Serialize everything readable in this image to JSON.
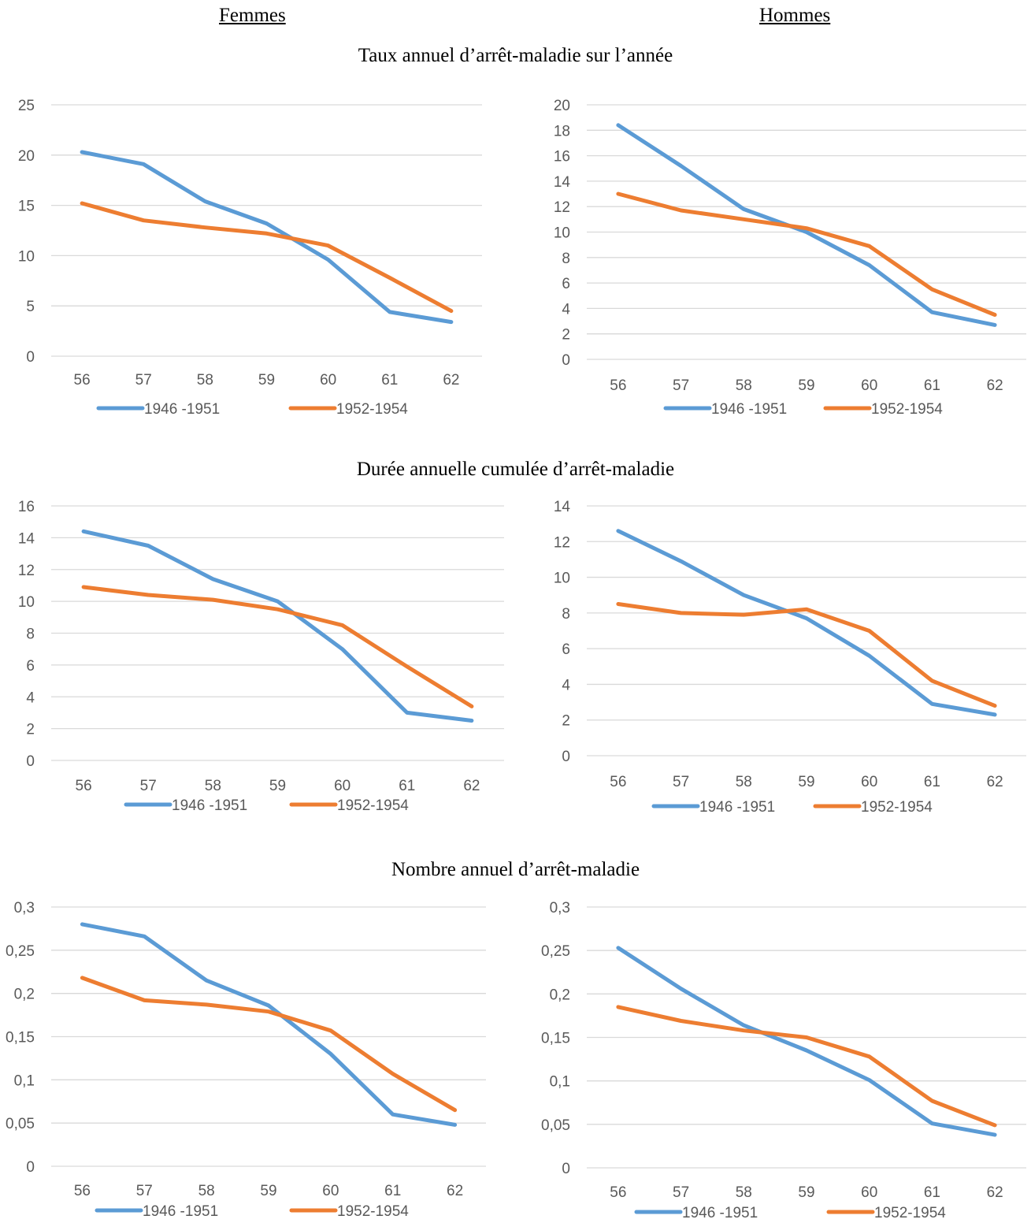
{
  "headers": {
    "left": "Femmes",
    "right": "Hommes"
  },
  "row_titles": [
    "Taux annuel d’arrêt-maladie sur l’année",
    "Durée annuelle cumulée d’arrêt-maladie",
    "Nombre annuel d’arrêt-maladie"
  ],
  "colors": {
    "series1": "#5B9BD5",
    "series2": "#ED7D31",
    "grid": "#D9D9D9",
    "text": "#595959"
  },
  "chart_data": [
    {
      "type": "line",
      "panel": "Femmes",
      "section": "Taux annuel d’arrêt-maladie sur l’année",
      "categories": [
        "56",
        "57",
        "58",
        "59",
        "60",
        "61",
        "62"
      ],
      "ylim": [
        0,
        25
      ],
      "yticks": [
        "0",
        "5",
        "10",
        "15",
        "20",
        "25"
      ],
      "ytick_values": [
        0,
        5,
        10,
        15,
        20,
        25
      ],
      "grid": true,
      "legend": "bottom",
      "series": [
        {
          "name": "1946 -1951",
          "values": [
            20.3,
            19.1,
            15.4,
            13.2,
            9.6,
            4.4,
            3.4
          ]
        },
        {
          "name": "1952-1954",
          "values": [
            15.2,
            13.5,
            12.8,
            12.2,
            11.0,
            7.8,
            4.5
          ]
        }
      ]
    },
    {
      "type": "line",
      "panel": "Hommes",
      "section": "Taux annuel d’arrêt-maladie sur l’année",
      "categories": [
        "56",
        "57",
        "58",
        "59",
        "60",
        "61",
        "62"
      ],
      "ylim": [
        0,
        20
      ],
      "yticks": [
        "0",
        "2",
        "4",
        "6",
        "8",
        "10",
        "12",
        "14",
        "16",
        "18",
        "20"
      ],
      "ytick_values": [
        0,
        2,
        4,
        6,
        8,
        10,
        12,
        14,
        16,
        18,
        20
      ],
      "grid": true,
      "legend": "bottom",
      "series": [
        {
          "name": "1946 -1951",
          "values": [
            18.4,
            15.2,
            11.8,
            10.0,
            7.4,
            3.7,
            2.7
          ]
        },
        {
          "name": "1952-1954",
          "values": [
            13.0,
            11.7,
            11.0,
            10.3,
            8.9,
            5.5,
            3.5
          ]
        }
      ]
    },
    {
      "type": "line",
      "panel": "Femmes",
      "section": "Durée annuelle cumulée d’arrêt-maladie",
      "categories": [
        "56",
        "57",
        "58",
        "59",
        "60",
        "61",
        "62"
      ],
      "ylim": [
        0,
        16
      ],
      "yticks": [
        "0",
        "2",
        "4",
        "6",
        "8",
        "10",
        "12",
        "14",
        "16"
      ],
      "ytick_values": [
        0,
        2,
        4,
        6,
        8,
        10,
        12,
        14,
        16
      ],
      "grid": true,
      "legend": "bottom",
      "series": [
        {
          "name": "1946 -1951",
          "values": [
            14.4,
            13.5,
            11.4,
            10.0,
            7.0,
            3.0,
            2.5
          ]
        },
        {
          "name": "1952-1954",
          "values": [
            10.9,
            10.4,
            10.1,
            9.5,
            8.5,
            5.9,
            3.4
          ]
        }
      ]
    },
    {
      "type": "line",
      "panel": "Hommes",
      "section": "Durée annuelle cumulée d’arrêt-maladie",
      "categories": [
        "56",
        "57",
        "58",
        "59",
        "60",
        "61",
        "62"
      ],
      "ylim": [
        0,
        14
      ],
      "yticks": [
        "0",
        "2",
        "4",
        "6",
        "8",
        "10",
        "12",
        "14"
      ],
      "ytick_values": [
        0,
        2,
        4,
        6,
        8,
        10,
        12,
        14
      ],
      "grid": true,
      "legend": "bottom",
      "series": [
        {
          "name": "1946 -1951",
          "values": [
            12.6,
            10.9,
            9.0,
            7.7,
            5.6,
            2.9,
            2.3
          ]
        },
        {
          "name": "1952-1954",
          "values": [
            8.5,
            8.0,
            7.9,
            8.2,
            7.0,
            4.2,
            2.8
          ]
        }
      ]
    },
    {
      "type": "line",
      "panel": "Femmes",
      "section": "Nombre annuel d’arrêt-maladie",
      "categories": [
        "56",
        "57",
        "58",
        "59",
        "60",
        "61",
        "62"
      ],
      "ylim": [
        0,
        0.3
      ],
      "yticks": [
        "0",
        "0,05",
        "0,1",
        "0,15",
        "0,2",
        "0,25",
        "0,3"
      ],
      "ytick_values": [
        0,
        0.05,
        0.1,
        0.15,
        0.2,
        0.25,
        0.3
      ],
      "grid": true,
      "legend": "bottom",
      "series": [
        {
          "name": "1946 -1951",
          "values": [
            0.28,
            0.266,
            0.215,
            0.186,
            0.13,
            0.06,
            0.048
          ]
        },
        {
          "name": "1952-1954",
          "values": [
            0.218,
            0.192,
            0.187,
            0.179,
            0.157,
            0.107,
            0.065
          ]
        }
      ]
    },
    {
      "type": "line",
      "panel": "Hommes",
      "section": "Nombre annuel d’arrêt-maladie",
      "categories": [
        "56",
        "57",
        "58",
        "59",
        "60",
        "61",
        "62"
      ],
      "ylim": [
        0,
        0.3
      ],
      "yticks": [
        "0",
        "0,05",
        "0,1",
        "0,15",
        "0,2",
        "0,25",
        "0,3"
      ],
      "ytick_values": [
        0,
        0.05,
        0.1,
        0.15,
        0.2,
        0.25,
        0.3
      ],
      "grid": true,
      "legend": "bottom",
      "series": [
        {
          "name": "1946 -1951",
          "values": [
            0.253,
            0.206,
            0.164,
            0.135,
            0.101,
            0.051,
            0.038
          ]
        },
        {
          "name": "1952-1954",
          "values": [
            0.185,
            0.169,
            0.158,
            0.15,
            0.128,
            0.077,
            0.049
          ]
        }
      ]
    }
  ]
}
